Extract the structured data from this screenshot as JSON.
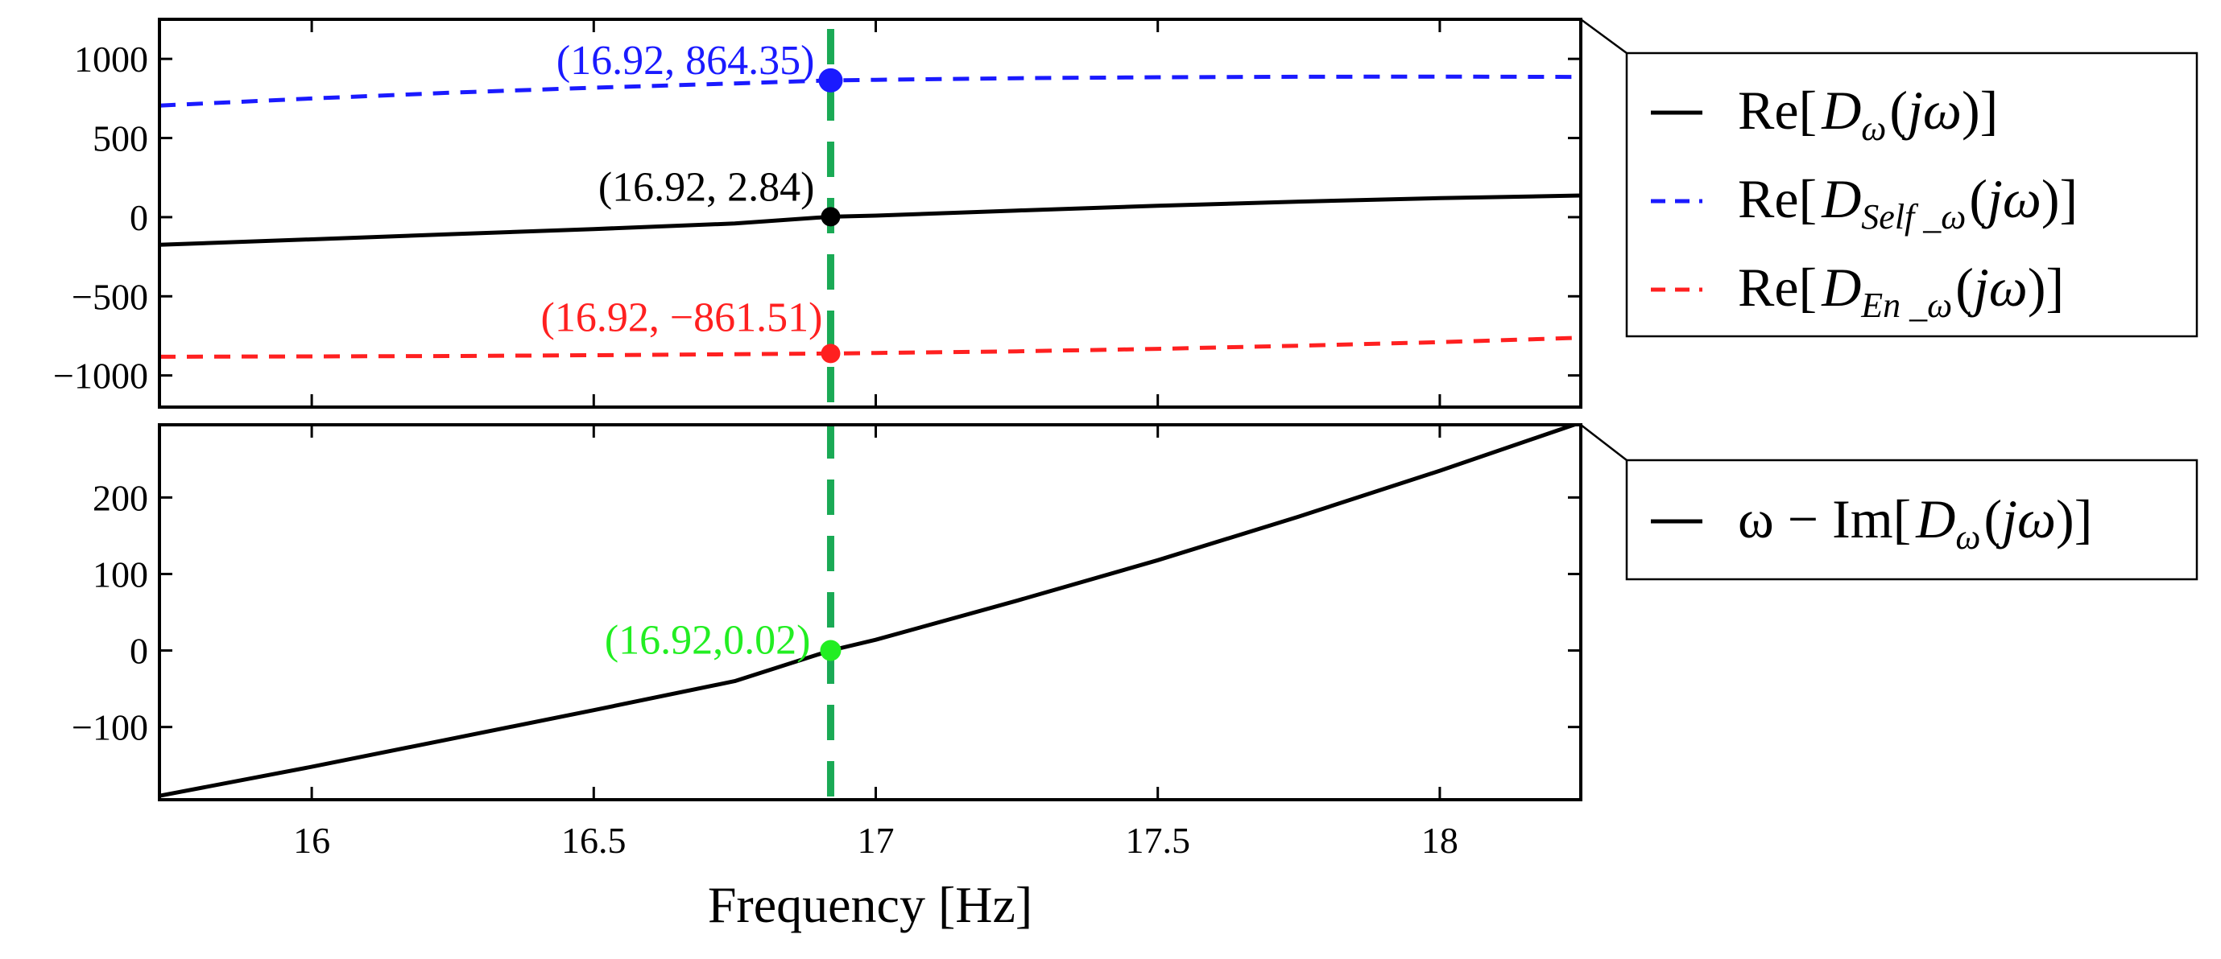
{
  "chart_data": [
    {
      "type": "line",
      "panel": "top",
      "x_range": [
        15.73,
        18.25
      ],
      "ylim": [
        -1200,
        1250
      ],
      "yticks": [
        1000,
        500,
        0,
        -500,
        -1000
      ],
      "ytick_labels": [
        "1000",
        "500",
        "0",
        "−500",
        "−1000"
      ],
      "grid": false,
      "legend_position": "outside-right",
      "series": [
        {
          "name": "Re[Dω(jω)]",
          "color": "#000000",
          "dash": "solid",
          "x": [
            15.73,
            16.0,
            16.25,
            16.5,
            16.75,
            16.92,
            17.0,
            17.25,
            17.5,
            17.75,
            18.0,
            18.25
          ],
          "y": [
            -175,
            -140,
            -107,
            -75,
            -40,
            2.84,
            10,
            42,
            72,
            98,
            120,
            137
          ]
        },
        {
          "name": "Re[DSelf_ω(jω)]",
          "color": "#1a1aff",
          "dash": "dashed",
          "x": [
            15.73,
            16.0,
            16.25,
            16.5,
            16.75,
            16.92,
            17.0,
            17.25,
            17.5,
            17.75,
            18.0,
            18.25
          ],
          "y": [
            705,
            750,
            787,
            818,
            845,
            864.35,
            868,
            878,
            884,
            887,
            888,
            886
          ]
        },
        {
          "name": "Re[DEn_ω(jω)]",
          "color": "#ff2020",
          "dash": "dashed",
          "x": [
            15.73,
            16.0,
            16.25,
            16.5,
            16.75,
            16.92,
            17.0,
            17.25,
            17.5,
            17.75,
            18.0,
            18.25
          ],
          "y": [
            -882,
            -880,
            -877,
            -872,
            -866,
            -861.51,
            -858,
            -848,
            -832,
            -812,
            -790,
            -762
          ]
        }
      ],
      "points": [
        {
          "x": 16.92,
          "y": 864.35,
          "label": "(16.92, 864.35)",
          "color": "#1a1aff"
        },
        {
          "x": 16.92,
          "y": 2.84,
          "label": "(16.92, 2.84)",
          "color": "#000000"
        },
        {
          "x": 16.92,
          "y": -861.51,
          "label": "(16.92, −861.51)",
          "color": "#ff2020"
        }
      ],
      "legend": [
        {
          "prefix": "Re",
          "sym": "D",
          "sub": "ω",
          "arg": "jω",
          "color": "#000000",
          "dash": "solid"
        },
        {
          "prefix": "Re",
          "sym": "D",
          "sub": "Self _ω",
          "arg": "jω",
          "color": "#1a1aff",
          "dash": "dashed"
        },
        {
          "prefix": "Re",
          "sym": "D",
          "sub": "En _ω",
          "arg": "jω",
          "color": "#ff2020",
          "dash": "dashed"
        }
      ]
    },
    {
      "type": "line",
      "panel": "bottom",
      "x_range": [
        15.73,
        18.25
      ],
      "ylim": [
        -195,
        295
      ],
      "yticks": [
        200,
        100,
        0,
        -100
      ],
      "ytick_labels": [
        "200",
        "100",
        "0",
        "−100"
      ],
      "xticks": [
        16,
        16.5,
        17,
        17.5,
        18
      ],
      "xtick_labels": [
        "16",
        "16.5",
        "17",
        "17.5",
        "18"
      ],
      "xlabel": "Frequency [Hz]",
      "grid": false,
      "legend_position": "outside-right",
      "series": [
        {
          "name": "ω − Im[Dω(jω)]",
          "color": "#000000",
          "dash": "solid",
          "x": [
            15.73,
            16.0,
            16.25,
            16.5,
            16.75,
            16.92,
            17.0,
            17.25,
            17.5,
            17.75,
            18.0,
            18.25
          ],
          "y": [
            -190,
            -152,
            -115,
            -78,
            -40,
            0.02,
            14,
            65,
            118,
            175,
            235,
            298
          ]
        }
      ],
      "points": [
        {
          "x": 16.92,
          "y": 0.02,
          "label": "(16.92,0.02)",
          "color": "#22ee22"
        }
      ],
      "legend": [
        {
          "pre": "ω − Im",
          "sym": "D",
          "sub": "ω",
          "arg": "jω",
          "color": "#000000",
          "dash": "solid"
        }
      ]
    }
  ],
  "marker_line": {
    "x": 16.92,
    "color": "#1aaa55"
  }
}
